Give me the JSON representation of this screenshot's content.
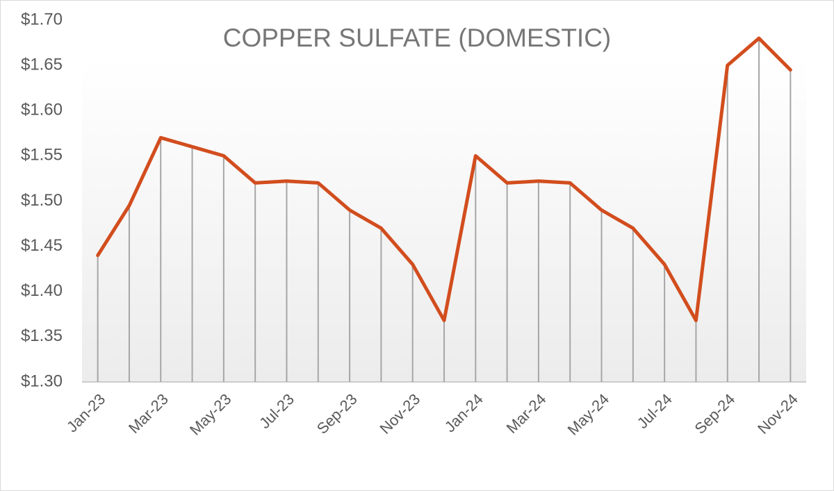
{
  "chart_data": {
    "type": "line",
    "title": "COPPER SULFATE (DOMESTIC)",
    "categories": [
      "Jan-23",
      null,
      "Mar-23",
      null,
      "May-23",
      null,
      "Jul-23",
      null,
      "Sep-23",
      null,
      "Nov-23",
      null,
      "Jan-24",
      null,
      "Mar-24",
      null,
      "May-24",
      null,
      "Jul-24",
      null,
      "Sep-24",
      null,
      "Nov-24"
    ],
    "values": [
      1.44,
      1.495,
      1.57,
      1.56,
      1.55,
      1.52,
      1.522,
      1.52,
      1.49,
      1.47,
      1.43,
      1.368,
      1.55,
      1.52,
      1.522,
      1.52,
      1.49,
      1.47,
      1.43,
      1.368,
      1.65,
      1.68,
      1.645
    ],
    "color": "#d24d1e",
    "drop_lines": true,
    "ylim": [
      1.3,
      1.7
    ],
    "yticks": [
      {
        "value": 1.3,
        "label": "$1.30"
      },
      {
        "value": 1.35,
        "label": "$1.35"
      },
      {
        "value": 1.4,
        "label": "$1.40"
      },
      {
        "value": 1.45,
        "label": "$1.45"
      },
      {
        "value": 1.5,
        "label": "$1.50"
      },
      {
        "value": 1.55,
        "label": "$1.55"
      },
      {
        "value": 1.6,
        "label": "$1.60"
      },
      {
        "value": 1.65,
        "label": "$1.65"
      },
      {
        "value": 1.7,
        "label": "$1.70"
      }
    ],
    "grid": false
  }
}
